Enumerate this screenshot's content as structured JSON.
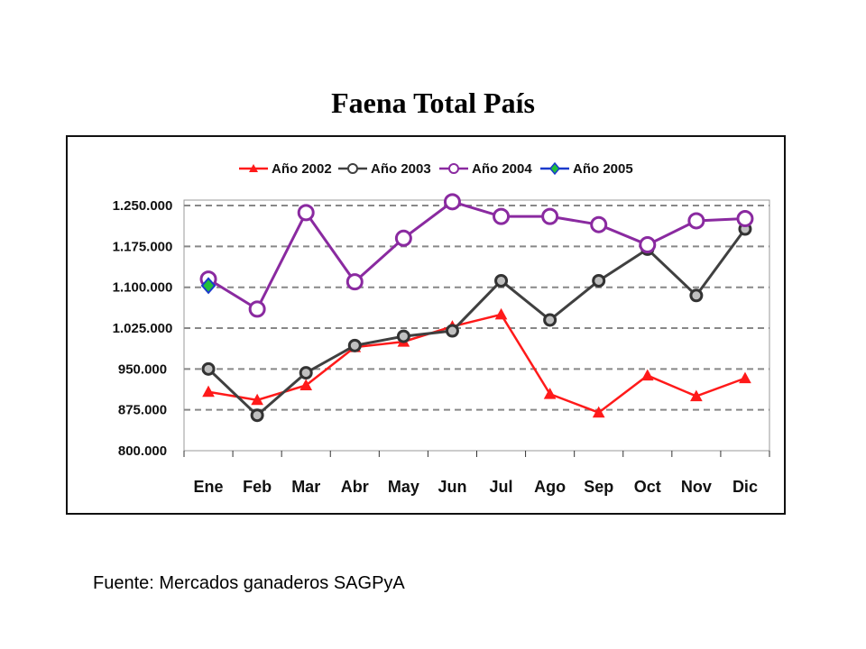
{
  "title": "Faena Total País",
  "source": "Fuente: Mercados ganaderos SAGPyA",
  "chart_data": {
    "type": "line",
    "title": "",
    "xlabel": "",
    "ylabel": "",
    "categories": [
      "Ene",
      "Feb",
      "Mar",
      "Abr",
      "May",
      "Jun",
      "Jul",
      "Ago",
      "Sep",
      "Oct",
      "Nov",
      "Dic"
    ],
    "y_ticks": [
      "800.000",
      "875.000",
      "950.000",
      "1.025.000",
      "1.100.000",
      "1.175.000",
      "1.250.000"
    ],
    "y_tick_values": [
      800000,
      875000,
      950000,
      1025000,
      1100000,
      1175000,
      1250000
    ],
    "ylim": [
      800000,
      1260000
    ],
    "grid": true,
    "legend_position": "top",
    "series": [
      {
        "name": "Año 2002",
        "color": "#ff1a1a",
        "marker": "triangle",
        "values": [
          908000,
          893000,
          920000,
          990000,
          1000000,
          1028000,
          1050000,
          904000,
          870000,
          938000,
          900000,
          933000
        ]
      },
      {
        "name": "Año 2003",
        "color": "#404040",
        "marker": "circle",
        "values": [
          950000,
          865000,
          943000,
          993000,
          1010000,
          1020000,
          1112000,
          1040000,
          1112000,
          1170000,
          1085000,
          1207000
        ]
      },
      {
        "name": "Año 2004",
        "color": "#8a2aa0",
        "marker": "circle",
        "values": [
          1115000,
          1060000,
          1237000,
          1110000,
          1190000,
          1257000,
          1230000,
          1230000,
          1215000,
          1178000,
          1222000,
          1226000
        ]
      },
      {
        "name": "Año 2005",
        "color": "#1a3acc",
        "marker": "diamond",
        "values": [
          1103000,
          null,
          null,
          null,
          null,
          null,
          null,
          null,
          null,
          null,
          null,
          null
        ]
      }
    ]
  }
}
